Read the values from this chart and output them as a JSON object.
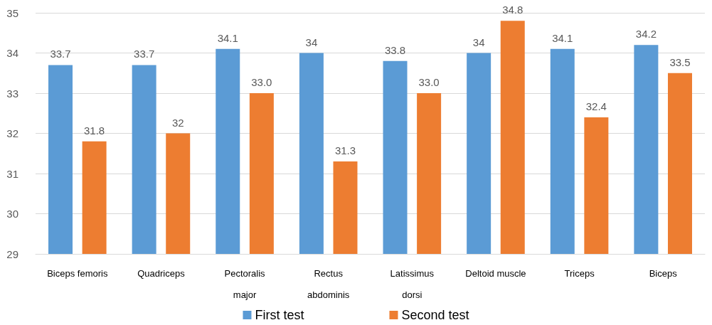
{
  "chart_data": {
    "type": "bar",
    "categories": [
      "Biceps femoris",
      "Quadriceps",
      "Pectoralis\nmajor",
      "Rectus\nabdominis",
      "Latissimus\ndorsi",
      "Deltoid muscle",
      "Triceps",
      "Biceps"
    ],
    "series": [
      {
        "name": "First test",
        "color": "#5b9bd5",
        "values": [
          33.7,
          33.7,
          34.1,
          34,
          33.8,
          34,
          34.1,
          34.2
        ],
        "value_labels": [
          "33.7",
          "33.7",
          "34.1",
          "34",
          "33.8",
          "34",
          "34.1",
          "34.2"
        ]
      },
      {
        "name": "Second test",
        "color": "#ed7d31",
        "values": [
          31.8,
          32,
          33,
          31.3,
          33,
          34.8,
          32.4,
          33.5
        ],
        "value_labels": [
          "31.8",
          "32",
          "33.0",
          "31.3",
          "33.0",
          "34.8",
          "32.4",
          "33.5"
        ]
      }
    ],
    "ylim": [
      29,
      35
    ],
    "yticks": [
      29,
      30,
      31,
      32,
      33,
      34,
      35
    ],
    "grid": "y",
    "legend": "bottom"
  }
}
